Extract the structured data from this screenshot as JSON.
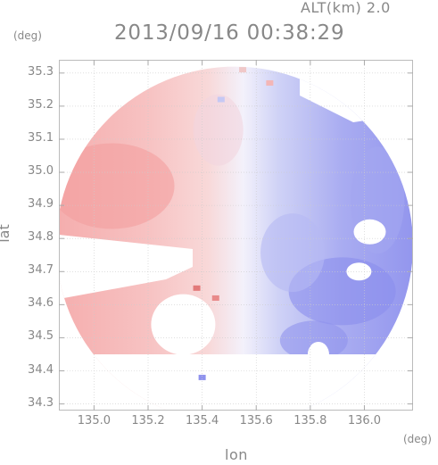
{
  "header": {
    "alt_label": "ALT(km) 2.0",
    "timestamp": "2013/09/16 00:38:29"
  },
  "chart_data": {
    "type": "heatmap",
    "title": "2013/09/16 00:38:29",
    "subtitle": "ALT(km) 2.0",
    "xlabel": "lon",
    "ylabel": "lat",
    "x_unit": "(deg)",
    "y_unit": "(deg)",
    "xlim": [
      134.87,
      136.18
    ],
    "ylim": [
      34.28,
      35.34
    ],
    "xticks": [
      "135.0",
      "135.2",
      "135.4",
      "135.6",
      "135.8",
      "136.0"
    ],
    "xtick_values": [
      135.0,
      135.2,
      135.4,
      135.6,
      135.8,
      136.0
    ],
    "yticks": [
      "34.3",
      "34.4",
      "34.5",
      "34.6",
      "34.7",
      "34.8",
      "34.9",
      "35.0",
      "35.1",
      "35.2",
      "35.3"
    ],
    "ytick_values": [
      34.3,
      34.4,
      34.5,
      34.6,
      34.7,
      34.8,
      34.9,
      35.0,
      35.1,
      35.2,
      35.3
    ],
    "grid": true,
    "colormap": "diverging red-white-blue",
    "colors": {
      "positive": "#f4a3a3",
      "neutral": "#f3f3fb",
      "negative": "#8f92ee",
      "strong_negative": "#6f72e6"
    },
    "radar_center": [
      135.52,
      34.78
    ],
    "radar_range_deg_lon": 0.66
  }
}
